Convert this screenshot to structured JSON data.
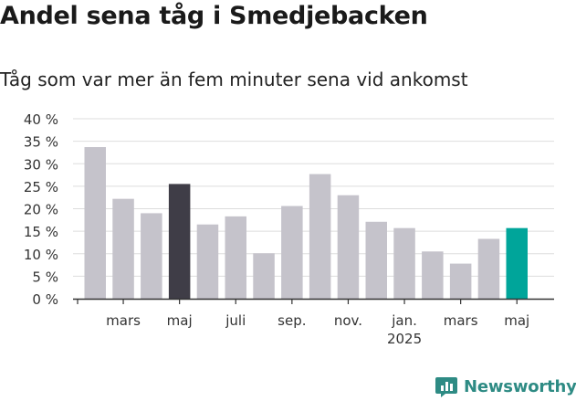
{
  "title": "Andel sena tåg i Smedjebacken",
  "subtitle": "Tåg som var mer än fem minuter sena vid ankomst",
  "brand": "Newsworthy",
  "colors": {
    "bar_default": "#c5c3cb",
    "bar_highlight_dark": "#3f3d47",
    "bar_highlight_teal": "#00a59a",
    "grid": "#dddddd",
    "axis": "#333333"
  },
  "chart_data": {
    "type": "bar",
    "ylim": [
      0,
      40
    ],
    "y_ticks": [
      0,
      5,
      10,
      15,
      20,
      25,
      30,
      35,
      40
    ],
    "y_tick_labels": [
      "0 %",
      "5 %",
      "10 %",
      "15 %",
      "20 %",
      "25 %",
      "30 %",
      "35 %",
      "40 %"
    ],
    "grid": true,
    "categories": [
      "2024-02",
      "2024-03",
      "2024-04",
      "2024-05",
      "2024-06",
      "2024-07",
      "2024-08",
      "2024-09",
      "2024-10",
      "2024-11",
      "2024-12",
      "2025-01",
      "2025-02",
      "2025-03",
      "2025-04",
      "2025-05"
    ],
    "values": [
      33.7,
      22.2,
      19.0,
      25.5,
      16.5,
      18.3,
      10.1,
      20.6,
      27.7,
      23.0,
      17.1,
      15.7,
      10.5,
      7.8,
      13.3,
      15.7
    ],
    "highlight": {
      "2024-05": "dark",
      "2025-05": "teal"
    },
    "x_tick_labels": [
      {
        "category": "2024-03",
        "label": "mars"
      },
      {
        "category": "2024-05",
        "label": "maj"
      },
      {
        "category": "2024-07",
        "label": "juli"
      },
      {
        "category": "2024-09",
        "label": "sep."
      },
      {
        "category": "2024-11",
        "label": "nov."
      },
      {
        "category": "2025-01",
        "label": "jan.",
        "sublabel": "2025"
      },
      {
        "category": "2025-03",
        "label": "mars"
      },
      {
        "category": "2025-05",
        "label": "maj"
      }
    ]
  }
}
